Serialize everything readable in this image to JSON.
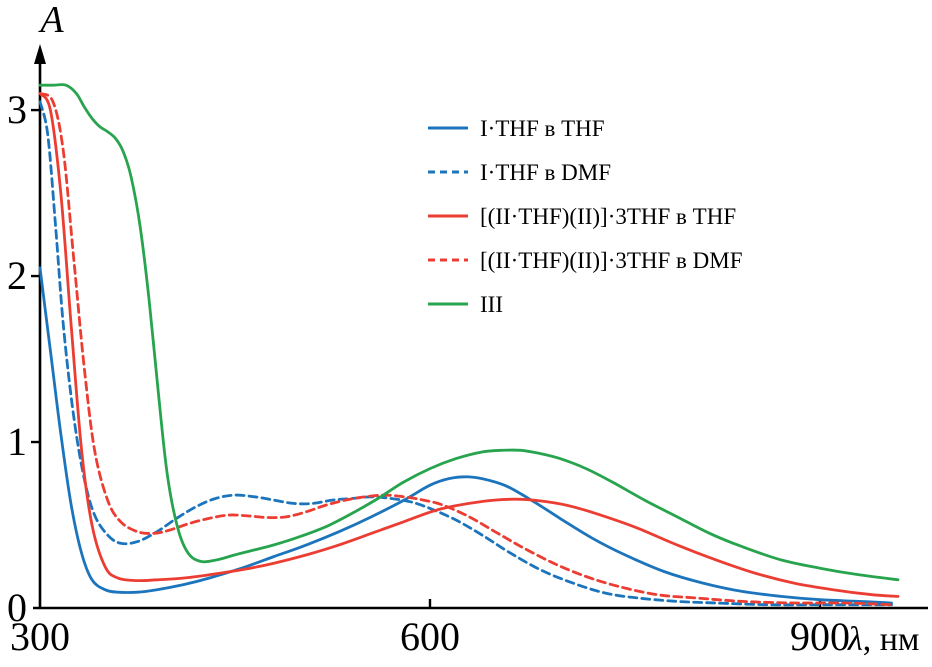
{
  "figure": {
    "xlabel_lambda": "λ",
    "xlabel_rest": ", нм"
  },
  "chart_data": {
    "type": "line",
    "title": "",
    "xlabel": "λ, нм",
    "ylabel": "A",
    "xlim": [
      300,
      980
    ],
    "ylim": [
      0,
      3.35
    ],
    "x_ticks": [
      300,
      600,
      900
    ],
    "y_ticks": [
      0,
      1,
      2,
      3
    ],
    "grid": false,
    "legend_position": "upper center inside",
    "axis_color": "#000000",
    "series": [
      {
        "name": "I·THF в THF",
        "color": "#1c75bc",
        "style": "solid",
        "x": [
          300,
          308,
          316,
          324,
          332,
          340,
          350,
          360,
          375,
          390,
          410,
          430,
          455,
          480,
          505,
          530,
          555,
          580,
          600,
          615,
          630,
          645,
          660,
          680,
          700,
          725,
          750,
          780,
          810,
          840,
          870,
          900,
          930,
          955
        ],
        "y": [
          2.05,
          1.55,
          1.05,
          0.62,
          0.33,
          0.17,
          0.11,
          0.095,
          0.095,
          0.11,
          0.14,
          0.18,
          0.24,
          0.31,
          0.38,
          0.46,
          0.55,
          0.65,
          0.74,
          0.78,
          0.79,
          0.77,
          0.73,
          0.64,
          0.54,
          0.42,
          0.32,
          0.22,
          0.15,
          0.1,
          0.07,
          0.05,
          0.04,
          0.03
        ]
      },
      {
        "name": "I·THF в DMF",
        "color": "#1c75bc",
        "style": "dashed",
        "x": [
          300,
          306,
          312,
          318,
          326,
          334,
          342,
          352,
          362,
          375,
          390,
          405,
          420,
          435,
          450,
          465,
          480,
          495,
          510,
          525,
          540,
          555,
          570,
          585,
          600,
          620,
          640,
          660,
          685,
          710,
          735,
          760,
          790,
          820,
          860,
          900,
          955
        ],
        "y": [
          3.05,
          2.85,
          2.3,
          1.7,
          1.15,
          0.78,
          0.56,
          0.44,
          0.39,
          0.4,
          0.46,
          0.54,
          0.61,
          0.66,
          0.68,
          0.67,
          0.65,
          0.63,
          0.63,
          0.65,
          0.66,
          0.67,
          0.66,
          0.64,
          0.6,
          0.53,
          0.44,
          0.34,
          0.23,
          0.15,
          0.09,
          0.06,
          0.04,
          0.03,
          0.02,
          0.02,
          0.02
        ]
      },
      {
        "name": "[(II·THF)(II)]·3THF в THF",
        "color": "#ec3d33",
        "style": "solid",
        "x": [
          300,
          308,
          316,
          324,
          332,
          340,
          350,
          360,
          375,
          390,
          410,
          430,
          455,
          480,
          505,
          530,
          555,
          580,
          605,
          630,
          650,
          670,
          690,
          710,
          735,
          760,
          790,
          820,
          850,
          880,
          910,
          940,
          960
        ],
        "y": [
          3.1,
          3.0,
          2.5,
          1.7,
          0.95,
          0.5,
          0.25,
          0.18,
          0.165,
          0.17,
          0.18,
          0.2,
          0.23,
          0.27,
          0.32,
          0.38,
          0.45,
          0.52,
          0.59,
          0.63,
          0.65,
          0.655,
          0.64,
          0.61,
          0.55,
          0.48,
          0.38,
          0.29,
          0.21,
          0.15,
          0.11,
          0.08,
          0.07
        ]
      },
      {
        "name": "[(II·THF)(II)]·3THF в DMF",
        "color": "#ec3d33",
        "style": "dashed",
        "x": [
          300,
          310,
          318,
          326,
          334,
          342,
          352,
          362,
          375,
          388,
          400,
          415,
          430,
          445,
          460,
          475,
          490,
          505,
          520,
          535,
          550,
          565,
          580,
          595,
          610,
          630,
          650,
          670,
          695,
          720,
          745,
          775,
          805,
          840,
          880,
          920,
          955
        ],
        "y": [
          3.1,
          3.05,
          2.75,
          2.1,
          1.45,
          0.95,
          0.65,
          0.52,
          0.46,
          0.45,
          0.47,
          0.51,
          0.54,
          0.56,
          0.555,
          0.545,
          0.55,
          0.58,
          0.62,
          0.65,
          0.67,
          0.68,
          0.67,
          0.65,
          0.62,
          0.55,
          0.46,
          0.37,
          0.27,
          0.19,
          0.13,
          0.08,
          0.06,
          0.04,
          0.03,
          0.03,
          0.02
        ]
      },
      {
        "name": "III",
        "color": "#27a44d",
        "style": "solid",
        "x": [
          300,
          310,
          320,
          328,
          334,
          340,
          346,
          352,
          358,
          364,
          370,
          377,
          384,
          391,
          398,
          406,
          414,
          424,
          436,
          450,
          465,
          480,
          500,
          520,
          540,
          560,
          580,
          600,
          620,
          640,
          655,
          670,
          685,
          700,
          720,
          740,
          765,
          790,
          815,
          840,
          870,
          900,
          930,
          960
        ],
        "y": [
          3.15,
          3.15,
          3.15,
          3.1,
          3.02,
          2.95,
          2.9,
          2.87,
          2.83,
          2.75,
          2.6,
          2.3,
          1.85,
          1.3,
          0.8,
          0.48,
          0.33,
          0.28,
          0.29,
          0.32,
          0.35,
          0.38,
          0.43,
          0.49,
          0.57,
          0.66,
          0.76,
          0.84,
          0.9,
          0.94,
          0.95,
          0.95,
          0.93,
          0.9,
          0.84,
          0.76,
          0.65,
          0.55,
          0.45,
          0.37,
          0.29,
          0.24,
          0.2,
          0.17
        ]
      }
    ]
  }
}
